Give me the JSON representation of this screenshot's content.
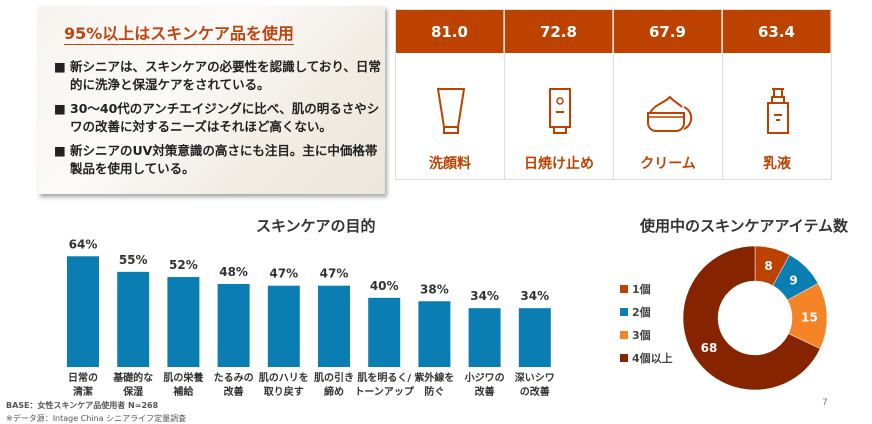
{
  "summary": {
    "title": "95%以上はスキンケア品を使用",
    "bullet_marker": "■",
    "bullets": [
      "新シニアは、スキンケアの必要性を認識しており、日常的に洗浄と保湿ケアをされている。",
      "30～40代のアンチエイジングに比べ、肌の明るさやシワの改善に対するニーズはそれほど高くない。",
      "新シニアのUV対策意識の高さにも注目。主に中価格帯製品を使用している。"
    ]
  },
  "products": [
    {
      "value": "81.0",
      "label": "洗顔料",
      "icon": "tube-icon"
    },
    {
      "value": "72.8",
      "label": "日焼け止め",
      "icon": "sunscreen-icon"
    },
    {
      "value": "67.9",
      "label": "クリーム",
      "icon": "cream-jar-icon"
    },
    {
      "value": "63.4",
      "label": "乳液",
      "icon": "pump-bottle-icon"
    }
  ],
  "colors": {
    "accent": "#bd4200",
    "bar": "#0a7db3"
  },
  "chart_data": [
    {
      "type": "bar",
      "title": "スキンケアの目的",
      "categories": [
        "日常の\n清潔",
        "基礎的な\n保湿",
        "肌の栄養\n補給",
        "たるみの\n改善",
        "肌のハリを\n取り戻す",
        "肌の引き\n締め",
        "肌を明るく/\nトーンアップ",
        "紫外線を\n防ぐ",
        "小ジワの\n改善",
        "深いシワ\nの改善"
      ],
      "values": [
        64,
        55,
        52,
        48,
        47,
        47,
        40,
        38,
        34,
        34
      ],
      "value_labels": [
        "64%",
        "55%",
        "52%",
        "48%",
        "47%",
        "47%",
        "40%",
        "38%",
        "34%",
        "34%"
      ],
      "color": "#0a7db3"
    },
    {
      "type": "pie",
      "title": "使用中のスキンケアアイテム数",
      "donut": true,
      "legend": "left",
      "slices": [
        {
          "name": "1個",
          "value": 8,
          "color": "#bd4200"
        },
        {
          "name": "2個",
          "value": 9,
          "color": "#0a7db3"
        },
        {
          "name": "3個",
          "value": 15,
          "color": "#f58426"
        },
        {
          "name": "4個以上",
          "value": 68,
          "color": "#862400"
        }
      ]
    }
  ],
  "footer": {
    "base": "BASE：女性スキンケア品使用者 N=268",
    "source": "※データ源：Intage China シニアライフ定量調査"
  },
  "page_number": "7"
}
